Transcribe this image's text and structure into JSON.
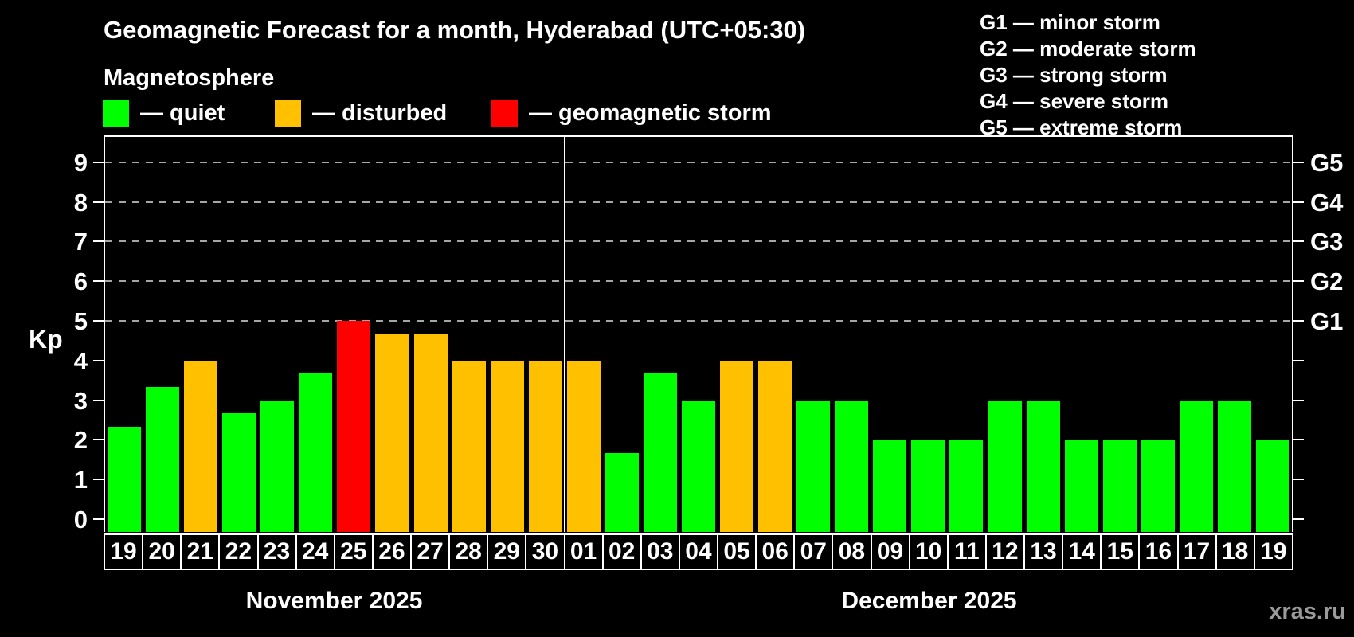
{
  "title": "Geomagnetic Forecast for a month, Hyderabad (UTC+05:30)",
  "subtitle": "Magnetosphere",
  "legend": {
    "items": [
      {
        "label": "— quiet",
        "status": "quiet",
        "color": "#00ff00"
      },
      {
        "label": "— disturbed",
        "status": "disturbed",
        "color": "#ffc000"
      },
      {
        "label": "— geomagnetic storm",
        "status": "storm",
        "color": "#ff0000"
      }
    ]
  },
  "g_legend": {
    "items": [
      "G1 — minor storm",
      "G2 — moderate storm",
      "G3 — strong storm",
      "G4 — severe storm",
      "G5 — extreme storm"
    ]
  },
  "watermark": "xras.ru",
  "chart_data": {
    "type": "bar",
    "title": "Geomagnetic Forecast for a month, Hyderabad (UTC+05:30)",
    "ylabel": "Kp",
    "xlabel": "",
    "ylim": [
      0,
      9.6
    ],
    "yticks": [
      0,
      1,
      2,
      3,
      4,
      5,
      6,
      7,
      8,
      9
    ],
    "gridlines_at_kp": [
      5,
      6,
      7,
      8,
      9
    ],
    "gridline_style": "dashed gray horizontal",
    "right_axis_labels": [
      {
        "kp": 5,
        "label": "G1"
      },
      {
        "kp": 6,
        "label": "G2"
      },
      {
        "kp": 7,
        "label": "G3"
      },
      {
        "kp": 8,
        "label": "G4"
      },
      {
        "kp": 9,
        "label": "G5"
      }
    ],
    "status_colors": {
      "quiet": "#00ff00",
      "disturbed": "#ffc000",
      "storm": "#ff0000"
    },
    "months": [
      {
        "label": "November 2025",
        "key": "nov",
        "bars": [
          {
            "day": "19",
            "kp": 2.33,
            "status": "quiet"
          },
          {
            "day": "20",
            "kp": 3.33,
            "status": "quiet"
          },
          {
            "day": "21",
            "kp": 4.0,
            "status": "disturbed"
          },
          {
            "day": "22",
            "kp": 2.67,
            "status": "quiet"
          },
          {
            "day": "23",
            "kp": 3.0,
            "status": "quiet"
          },
          {
            "day": "24",
            "kp": 3.67,
            "status": "quiet"
          },
          {
            "day": "25",
            "kp": 5.0,
            "status": "storm"
          },
          {
            "day": "26",
            "kp": 4.67,
            "status": "disturbed"
          },
          {
            "day": "27",
            "kp": 4.67,
            "status": "disturbed"
          },
          {
            "day": "28",
            "kp": 4.0,
            "status": "disturbed"
          },
          {
            "day": "29",
            "kp": 4.0,
            "status": "disturbed"
          },
          {
            "day": "30",
            "kp": 4.0,
            "status": "disturbed"
          }
        ]
      },
      {
        "label": "December 2025",
        "key": "dec",
        "bars": [
          {
            "day": "01",
            "kp": 4.0,
            "status": "disturbed"
          },
          {
            "day": "02",
            "kp": 1.67,
            "status": "quiet"
          },
          {
            "day": "03",
            "kp": 3.67,
            "status": "quiet"
          },
          {
            "day": "04",
            "kp": 3.0,
            "status": "quiet"
          },
          {
            "day": "05",
            "kp": 4.0,
            "status": "disturbed"
          },
          {
            "day": "06",
            "kp": 4.0,
            "status": "disturbed"
          },
          {
            "day": "07",
            "kp": 3.0,
            "status": "quiet"
          },
          {
            "day": "08",
            "kp": 3.0,
            "status": "quiet"
          },
          {
            "day": "09",
            "kp": 2.0,
            "status": "quiet"
          },
          {
            "day": "10",
            "kp": 2.0,
            "status": "quiet"
          },
          {
            "day": "11",
            "kp": 2.0,
            "status": "quiet"
          },
          {
            "day": "12",
            "kp": 3.0,
            "status": "quiet"
          },
          {
            "day": "13",
            "kp": 3.0,
            "status": "quiet"
          },
          {
            "day": "14",
            "kp": 2.0,
            "status": "quiet"
          },
          {
            "day": "15",
            "kp": 2.0,
            "status": "quiet"
          },
          {
            "day": "16",
            "kp": 2.0,
            "status": "quiet"
          },
          {
            "day": "17",
            "kp": 3.0,
            "status": "quiet"
          },
          {
            "day": "18",
            "kp": 3.0,
            "status": "quiet"
          },
          {
            "day": "19",
            "kp": 2.0,
            "status": "quiet"
          }
        ]
      }
    ]
  }
}
